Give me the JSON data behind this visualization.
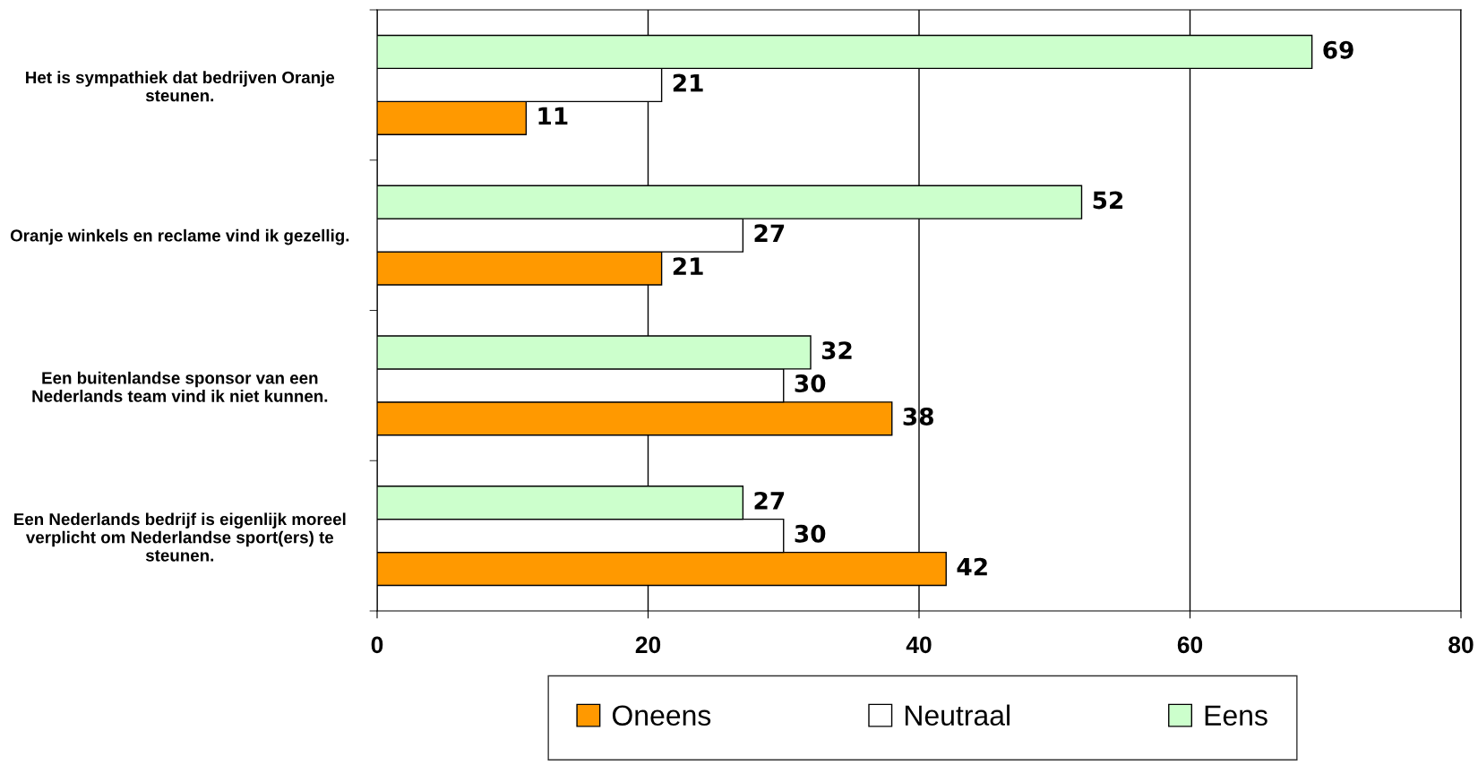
{
  "chart_data": {
    "type": "bar",
    "orientation": "horizontal",
    "categories": [
      "Het is sympathiek dat bedrijven Oranje steunen.",
      "Oranje winkels en reclame vind ik gezellig.",
      "Een buitenlandse sponsor van een Nederlands team vind ik niet kunnen.",
      "Een Nederlands bedrijf is eigenlijk moreel verplicht om Nederlandse sport(ers) te steunen."
    ],
    "series": [
      {
        "name": "Oneens",
        "color": "#ff9900",
        "values": [
          11,
          21,
          38,
          42
        ]
      },
      {
        "name": "Neutraal",
        "color": "#ffffff",
        "values": [
          21,
          27,
          30,
          30
        ]
      },
      {
        "name": "Eens",
        "color": "#ccffcc",
        "values": [
          69,
          52,
          32,
          27
        ]
      }
    ],
    "xlim": [
      0,
      80
    ],
    "xticks": [
      0,
      20,
      40,
      60,
      80
    ],
    "grid": "x",
    "legend": "bottom",
    "data_labels": true
  }
}
